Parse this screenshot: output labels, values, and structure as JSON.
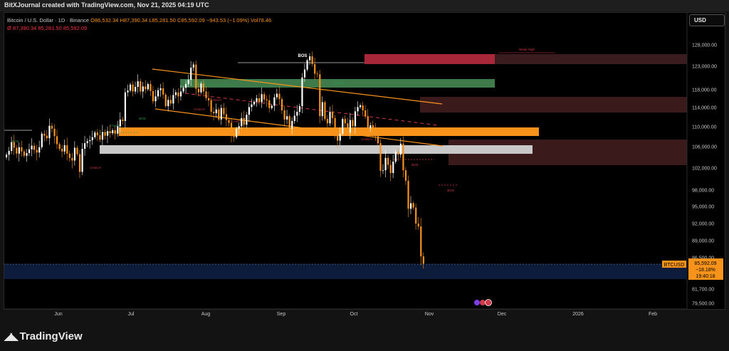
{
  "header": {
    "title": "BitXJournal created with TradingView.com, Nov 21, 2025 04:19 UTC"
  },
  "legend": {
    "symbol": "Bitcoin / U.S. Dollar · 1D · Binance",
    "open": "O86,532.34",
    "high": "H87,390.34",
    "low": "L85,281.50",
    "close": "C85,592.09",
    "change": "−943.53 (−1.09%)",
    "volume": "Vol78.46",
    "indicator_prefix": "Ø",
    "indicator_values": "87,390.34  85,281.50  85,592.09"
  },
  "currency_button": {
    "label": "USD"
  },
  "price_badge": {
    "symbol": "BTCUSD",
    "price": "85,592.09",
    "change": "−18.18%",
    "countdown": "19:40:18"
  },
  "footer": {
    "brand": "TradingView"
  },
  "colors": {
    "up": "#ffffff",
    "down": "#f7931a",
    "orange_zone": "#f7931a",
    "red_zone": "#a8283a",
    "green_zone": "#3e7a4a",
    "gray_zone": "#c8c8c8",
    "dark_red_zone": "#3a1a1a",
    "blue_zone": "#0d1c3a"
  },
  "chart_data": {
    "type": "candlestick",
    "y_axis_ticks": [
      "128,000.00",
      "123,000.00",
      "118,000.00",
      "114,000.00",
      "110,000.00",
      "106,000.00",
      "102,000.00",
      "98,000.00",
      "95,000.00",
      "92,000.00",
      "89,000.00",
      "86,500.00",
      "81,700.00",
      "79,500.00"
    ],
    "x_axis_labels": [
      "Jun",
      "Jul",
      "Aug",
      "Sep",
      "Oct",
      "Nov",
      "Dec",
      "2026",
      "Feb"
    ],
    "annotations": [
      "BOS",
      "BOS",
      "BOS",
      "BOS",
      "BOS",
      "CHoCH",
      "CHoCH",
      "CHoCH",
      "CHoCH",
      "CHoCH",
      "CHoCH",
      "CHoCH",
      "Weak High"
    ],
    "closes": [
      104500,
      105200,
      106900,
      105800,
      104700,
      105900,
      105100,
      104300,
      104800,
      105500,
      106200,
      105400,
      104900,
      105900,
      108600,
      108200,
      107700,
      110200,
      109600,
      108100,
      106500,
      105600,
      105100,
      106300,
      104700,
      103900,
      103400,
      105800,
      104600,
      101300,
      105600,
      106700,
      107100,
      107300,
      107900,
      108800,
      108300,
      107400,
      108900,
      108200,
      109100,
      108700,
      109300,
      108600,
      110100,
      111500,
      111200,
      117400,
      117800,
      119100,
      117600,
      118600,
      119800,
      117600,
      118700,
      118100,
      119200,
      117700,
      115400,
      116500,
      117900,
      118300,
      116900,
      114300,
      115700,
      114900,
      116800,
      117400,
      116500,
      117600,
      118400,
      119200,
      120100,
      122700,
      123400,
      118200,
      117400,
      119300,
      117600,
      116100,
      115600,
      113100,
      112800,
      113600,
      111500,
      113900,
      112600,
      111400,
      110800,
      108300,
      107900,
      109600,
      110100,
      111800,
      110400,
      112500,
      114100,
      114700,
      115300,
      116100,
      115200,
      117000,
      115800,
      115600,
      113900,
      114400,
      116300,
      117100,
      115900,
      113400,
      111500,
      112200,
      109600,
      111200,
      112300,
      113100,
      114300,
      120600,
      122300,
      124400,
      125300,
      123500,
      121400,
      121300,
      112200,
      115200,
      111600,
      110700,
      113100,
      111800,
      108400,
      107200,
      108600,
      111600,
      110700,
      108800,
      111400,
      110100,
      113200,
      114100,
      114500,
      113400,
      112200,
      109700,
      110300,
      109400,
      108100,
      106700,
      101500,
      101600,
      103900,
      102600,
      101100,
      103200,
      105000,
      104500,
      106600,
      101600,
      99700,
      94600,
      95600,
      94800,
      92000,
      91500,
      86700,
      85592
    ]
  }
}
